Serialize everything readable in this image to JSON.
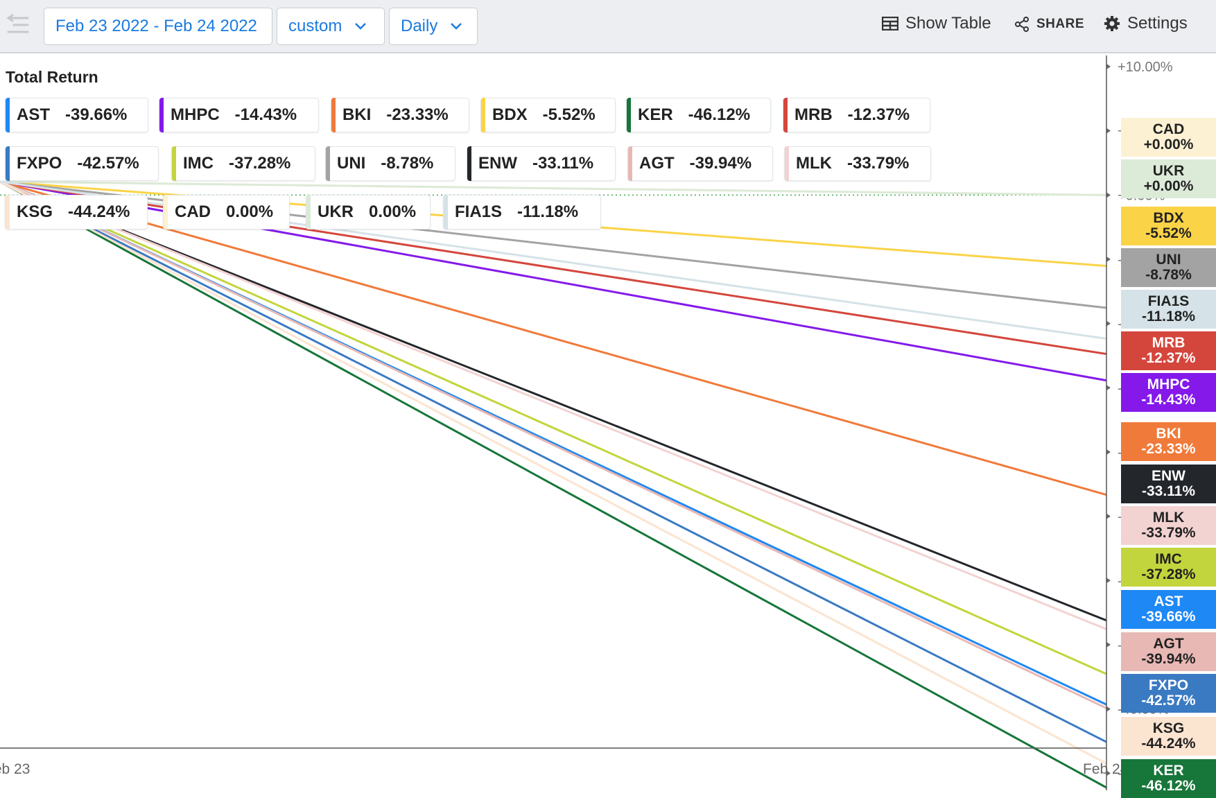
{
  "toolbar": {
    "date_range": "Feb 23 2022 - Feb 24 2022",
    "range_preset": "custom",
    "interval": "Daily",
    "show_table": "Show Table",
    "share": "SHARE",
    "settings": "Settings",
    "accent_color": "#1a7ae0"
  },
  "chart_data": {
    "type": "line",
    "title": "Total Return",
    "x": [
      "Feb 23",
      "Feb 24"
    ],
    "x_tick_labels": [
      "Feb 23",
      "Feb 24"
    ],
    "y_unit": "%",
    "y_ticks": [
      "+10.00%",
      "+5.00%",
      "+0.00%",
      "-5.00%",
      "-10.00%",
      "-15.00%",
      "-20.00%",
      "-25.00%",
      "-30.00%",
      "-35.00%",
      "-40.00%",
      "-45.00%"
    ],
    "ylim": [
      -46.12,
      10
    ],
    "legend_position": "top-left",
    "series": [
      {
        "name": "AST",
        "values": [
          0,
          -39.66
        ],
        "label": "-39.66%",
        "end_label": "-39.66%",
        "color": "#1e88f5",
        "text": "#ffffff"
      },
      {
        "name": "MHPC",
        "values": [
          0,
          -14.43
        ],
        "label": "-14.43%",
        "end_label": "-14.43%",
        "color": "#8419ea",
        "text": "#ffffff"
      },
      {
        "name": "BKI",
        "values": [
          0,
          -23.33
        ],
        "label": "-23.33%",
        "end_label": "-23.33%",
        "color": "#f07a3a",
        "text": "#ffffff"
      },
      {
        "name": "BDX",
        "values": [
          0,
          -5.52
        ],
        "label": "-5.52%",
        "end_label": "-5.52%",
        "color": "#fbd347",
        "text": "#222222"
      },
      {
        "name": "KER",
        "values": [
          0,
          -46.12
        ],
        "label": "-46.12%",
        "end_label": "-46.12%",
        "color": "#17763a",
        "text": "#ffffff"
      },
      {
        "name": "MRB",
        "values": [
          0,
          -12.37
        ],
        "label": "-12.37%",
        "end_label": "-12.37%",
        "color": "#d4463c",
        "text": "#ffffff"
      },
      {
        "name": "FXPO",
        "values": [
          0,
          -42.57
        ],
        "label": "-42.57%",
        "end_label": "-42.57%",
        "color": "#3a7ac2",
        "text": "#ffffff"
      },
      {
        "name": "IMC",
        "values": [
          0,
          -37.28
        ],
        "label": "-37.28%",
        "end_label": "-37.28%",
        "color": "#c3d53c",
        "text": "#222222"
      },
      {
        "name": "UNI",
        "values": [
          0,
          -8.78
        ],
        "label": "-8.78%",
        "end_label": "-8.78%",
        "color": "#a3a3a3",
        "text": "#222222"
      },
      {
        "name": "ENW",
        "values": [
          0,
          -33.11
        ],
        "label": "-33.11%",
        "end_label": "-33.11%",
        "color": "#23262b",
        "text": "#ffffff"
      },
      {
        "name": "AGT",
        "values": [
          0,
          -39.94
        ],
        "label": "-39.94%",
        "end_label": "-39.94%",
        "color": "#e8b8b4",
        "text": "#222222"
      },
      {
        "name": "MLK",
        "values": [
          0,
          -33.79
        ],
        "label": "-33.79%",
        "end_label": "-33.79%",
        "color": "#f3d2d2",
        "text": "#222222"
      },
      {
        "name": "KSG",
        "values": [
          0,
          -44.24
        ],
        "label": "-44.24%",
        "end_label": "-44.24%",
        "color": "#fbe4d0",
        "text": "#222222"
      },
      {
        "name": "CAD",
        "values": [
          0,
          0.0
        ],
        "label": "0.00%",
        "end_label": "+0.00%",
        "color": "#fdf1d4",
        "text": "#222222"
      },
      {
        "name": "UKR",
        "values": [
          0,
          0.0
        ],
        "label": "0.00%",
        "end_label": "+0.00%",
        "color": "#dcead8",
        "text": "#222222"
      },
      {
        "name": "FIA1S",
        "values": [
          0,
          -11.18
        ],
        "label": "-11.18%",
        "end_label": "-11.18%",
        "color": "#d5e2e8",
        "text": "#222222"
      }
    ]
  }
}
